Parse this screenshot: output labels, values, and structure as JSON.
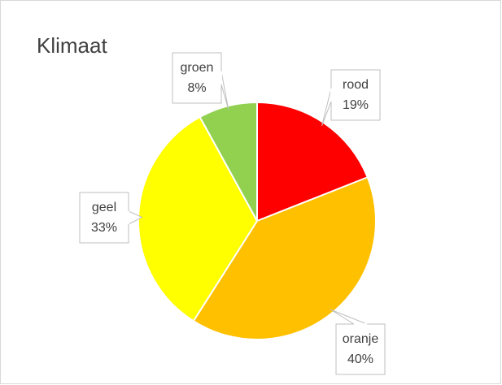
{
  "chart_data": {
    "type": "pie",
    "title": "Klimaat",
    "categories": [
      "rood",
      "oranje",
      "geel",
      "groen"
    ],
    "values": [
      19,
      40,
      33,
      8
    ],
    "value_labels": [
      "19%",
      "40%",
      "33%",
      "8%"
    ],
    "colors": [
      "#ff0000",
      "#ffc000",
      "#ffff00",
      "#92d050"
    ]
  }
}
